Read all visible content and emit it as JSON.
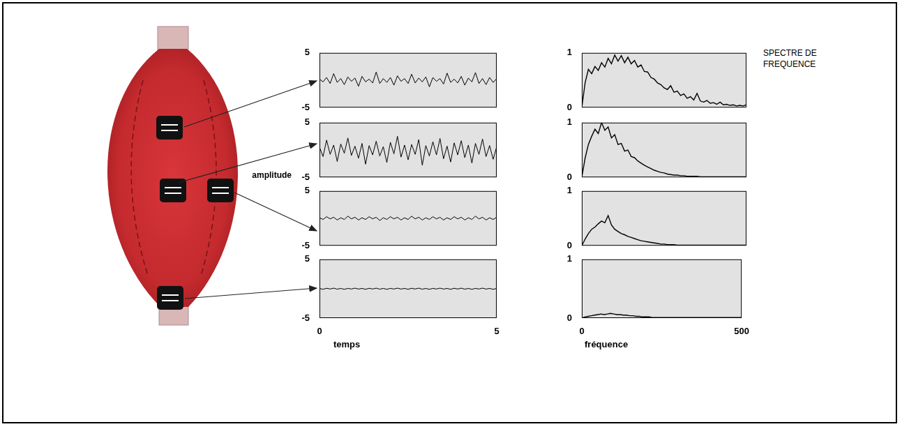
{
  "chart_data": [
    {
      "type": "line",
      "color": "#000000",
      "grid": false,
      "tick_labels": "y",
      "xlim": [
        0,
        5
      ],
      "ylim": [
        -5,
        5
      ],
      "yticks": [
        -5,
        5
      ],
      "x": [
        0,
        0.1,
        0.2,
        0.3,
        0.4,
        0.5,
        0.6,
        0.7,
        0.8,
        0.9,
        1,
        1.1,
        1.2,
        1.3,
        1.4,
        1.5,
        1.6,
        1.7,
        1.8,
        1.9,
        2,
        2.1,
        2.2,
        2.3,
        2.4,
        2.5,
        2.6,
        2.7,
        2.8,
        2.9,
        3,
        3.1,
        3.2,
        3.3,
        3.4,
        3.5,
        3.6,
        3.7,
        3.8,
        3.9,
        4,
        4.1,
        4.2,
        4.3,
        4.4,
        4.5,
        4.6,
        4.7,
        4.8,
        4.9,
        5
      ],
      "values": [
        0.2,
        -0.3,
        0.5,
        -0.6,
        1.2,
        -0.4,
        0.3,
        -0.8,
        0.6,
        -0.2,
        0.4,
        -1.1,
        0.7,
        -0.3,
        0.2,
        -0.5,
        1.5,
        -0.6,
        0.3,
        -0.4,
        0.5,
        -0.9,
        0.8,
        -0.2,
        0.3,
        -0.6,
        1.1,
        -0.5,
        0.4,
        -0.3,
        0.6,
        -1.2,
        0.5,
        -0.2,
        0.3,
        -0.7,
        1.3,
        -0.4,
        0.2,
        -0.5,
        0.7,
        -0.9,
        0.4,
        -0.3,
        1.4,
        -0.6,
        0.3,
        -0.8,
        0.5,
        -0.4,
        0.3
      ]
    },
    {
      "type": "line",
      "color": "#000000",
      "grid": false,
      "tick_labels": "y",
      "y_label": "amplitude",
      "xlim": [
        0,
        5
      ],
      "ylim": [
        -5,
        5
      ],
      "yticks": [
        -5,
        5
      ],
      "x": [
        0,
        0.1,
        0.2,
        0.3,
        0.4,
        0.5,
        0.6,
        0.7,
        0.8,
        0.9,
        1,
        1.1,
        1.2,
        1.3,
        1.4,
        1.5,
        1.6,
        1.7,
        1.8,
        1.9,
        2,
        2.1,
        2.2,
        2.3,
        2.4,
        2.5,
        2.6,
        2.7,
        2.8,
        2.9,
        3,
        3.1,
        3.2,
        3.3,
        3.4,
        3.5,
        3.6,
        3.7,
        3.8,
        3.9,
        4,
        4.1,
        4.2,
        4.3,
        4.4,
        4.5,
        4.6,
        4.7,
        4.8,
        4.9,
        5
      ],
      "values": [
        0.5,
        -1.2,
        1.8,
        -0.8,
        0.9,
        -2.1,
        1.1,
        -0.6,
        2.2,
        -1.0,
        0.7,
        -1.5,
        1.2,
        -2.6,
        0.8,
        -0.9,
        1.6,
        -1.1,
        0.6,
        -2.3,
        1.4,
        -0.7,
        2.5,
        -1.3,
        0.9,
        -1.8,
        1.0,
        -0.8,
        1.9,
        -2.8,
        0.8,
        -1.1,
        1.5,
        -0.9,
        2.1,
        -1.6,
        0.7,
        -2.2,
        1.3,
        -0.9,
        1.7,
        -1.4,
        0.9,
        -2.4,
        1.2,
        -0.8,
        2.0,
        -1.2,
        0.8,
        -1.7,
        0.6
      ]
    },
    {
      "type": "line",
      "color": "#000000",
      "grid": false,
      "tick_labels": "y",
      "xlim": [
        0,
        5
      ],
      "ylim": [
        -5,
        5
      ],
      "yticks": [
        -5,
        5
      ],
      "x": [
        0,
        0.1,
        0.2,
        0.3,
        0.4,
        0.5,
        0.6,
        0.7,
        0.8,
        0.9,
        1,
        1.1,
        1.2,
        1.3,
        1.4,
        1.5,
        1.6,
        1.7,
        1.8,
        1.9,
        2,
        2.1,
        2.2,
        2.3,
        2.4,
        2.5,
        2.6,
        2.7,
        2.8,
        2.9,
        3,
        3.1,
        3.2,
        3.3,
        3.4,
        3.5,
        3.6,
        3.7,
        3.8,
        3.9,
        4,
        4.1,
        4.2,
        4.3,
        4.4,
        4.5,
        4.6,
        4.7,
        4.8,
        4.9,
        5
      ],
      "values": [
        0.1,
        -0.2,
        0.3,
        -0.1,
        0.2,
        -0.3,
        0.1,
        -0.2,
        0.4,
        -0.1,
        0.2,
        -0.3,
        0.1,
        -0.2,
        0.3,
        -0.1,
        0.2,
        -0.4,
        0.1,
        -0.2,
        0.3,
        -0.1,
        0.2,
        -0.3,
        0.1,
        -0.2,
        0.4,
        -0.1,
        0.2,
        -0.3,
        0.1,
        -0.2,
        0.3,
        -0.1,
        0.2,
        -0.3,
        0.1,
        -0.2,
        0.3,
        -0.1,
        0.2,
        -0.3,
        0.1,
        -0.2,
        0.4,
        -0.1,
        0.2,
        -0.3,
        0.1,
        -0.2,
        0.2
      ]
    },
    {
      "type": "line",
      "color": "#000000",
      "grid": false,
      "tick_labels": true,
      "x_label": "temps",
      "xlim": [
        0,
        5
      ],
      "ylim": [
        -5,
        5
      ],
      "xticks": [
        0,
        5
      ],
      "yticks": [
        -5,
        5
      ],
      "x": [
        0,
        0.1,
        0.2,
        0.3,
        0.4,
        0.5,
        0.6,
        0.7,
        0.8,
        0.9,
        1,
        1.1,
        1.2,
        1.3,
        1.4,
        1.5,
        1.6,
        1.7,
        1.8,
        1.9,
        2,
        2.1,
        2.2,
        2.3,
        2.4,
        2.5,
        2.6,
        2.7,
        2.8,
        2.9,
        3,
        3.1,
        3.2,
        3.3,
        3.4,
        3.5,
        3.6,
        3.7,
        3.8,
        3.9,
        4,
        4.1,
        4.2,
        4.3,
        4.4,
        4.5,
        4.6,
        4.7,
        4.8,
        4.9,
        5
      ],
      "values": [
        0.05,
        -0.1,
        0.08,
        -0.05,
        0.1,
        -0.08,
        0.05,
        -0.1,
        0.06,
        -0.05,
        0.1,
        -0.06,
        0.05,
        -0.1,
        0.08,
        -0.05,
        0.1,
        -0.08,
        0.05,
        -0.1,
        0.06,
        -0.05,
        0.1,
        -0.06,
        0.05,
        -0.1,
        0.08,
        -0.05,
        0.1,
        -0.08,
        0.05,
        -0.1,
        0.06,
        -0.05,
        0.1,
        -0.06,
        0.05,
        -0.1,
        0.08,
        -0.05,
        0.1,
        -0.08,
        0.05,
        -0.1,
        0.06,
        -0.05,
        0.1,
        -0.06,
        0.05,
        -0.1,
        0.05
      ]
    },
    {
      "type": "line",
      "color": "#000000",
      "grid": false,
      "tick_labels": "y",
      "xlim": [
        0,
        500
      ],
      "ylim": [
        0,
        1
      ],
      "yticks": [
        0,
        1
      ],
      "x": [
        0,
        10,
        20,
        30,
        40,
        50,
        60,
        70,
        80,
        90,
        100,
        110,
        120,
        130,
        140,
        150,
        160,
        170,
        180,
        190,
        200,
        210,
        220,
        230,
        240,
        250,
        260,
        270,
        280,
        290,
        300,
        310,
        320,
        330,
        340,
        350,
        360,
        370,
        380,
        390,
        400,
        410,
        420,
        430,
        440,
        450,
        460,
        470,
        480,
        490,
        500
      ],
      "values": [
        0,
        0.45,
        0.7,
        0.62,
        0.75,
        0.68,
        0.82,
        0.74,
        0.9,
        0.8,
        0.96,
        0.85,
        0.95,
        0.82,
        0.92,
        0.8,
        0.86,
        0.74,
        0.78,
        0.66,
        0.65,
        0.55,
        0.52,
        0.45,
        0.42,
        0.36,
        0.33,
        0.4,
        0.28,
        0.3,
        0.22,
        0.25,
        0.17,
        0.2,
        0.14,
        0.26,
        0.12,
        0.1,
        0.13,
        0.08,
        0.09,
        0.06,
        0.1,
        0.05,
        0.06,
        0.04,
        0.05,
        0.03,
        0.04,
        0.03,
        0.05
      ]
    },
    {
      "type": "line",
      "color": "#000000",
      "grid": false,
      "tick_labels": "y",
      "xlim": [
        0,
        500
      ],
      "ylim": [
        0,
        1
      ],
      "yticks": [
        0,
        1
      ],
      "x": [
        0,
        10,
        20,
        30,
        40,
        50,
        60,
        70,
        80,
        90,
        100,
        110,
        120,
        130,
        140,
        150,
        160,
        170,
        180,
        190,
        200,
        210,
        220,
        230,
        240,
        250,
        260,
        270,
        280,
        290,
        300,
        310,
        320,
        330,
        340,
        350,
        360,
        370,
        380,
        390,
        400,
        410,
        420,
        430,
        440,
        450,
        460,
        470,
        480,
        490,
        500
      ],
      "values": [
        0,
        0.35,
        0.6,
        0.75,
        0.88,
        0.8,
        1.0,
        0.86,
        0.92,
        0.72,
        0.78,
        0.6,
        0.62,
        0.48,
        0.5,
        0.38,
        0.36,
        0.3,
        0.26,
        0.22,
        0.19,
        0.16,
        0.13,
        0.11,
        0.09,
        0.08,
        0.06,
        0.05,
        0.04,
        0.04,
        0.03,
        0.03,
        0.02,
        0.02,
        0.02,
        0.02,
        0.01,
        0.01,
        0.01,
        0.01,
        0.01,
        0.01,
        0.01,
        0.01,
        0.01,
        0.01,
        0.01,
        0.01,
        0.01,
        0.01,
        0.01
      ]
    },
    {
      "type": "line",
      "color": "#000000",
      "grid": false,
      "tick_labels": "y",
      "xlim": [
        0,
        500
      ],
      "ylim": [
        0,
        1
      ],
      "yticks": [
        0,
        1
      ],
      "x": [
        0,
        10,
        20,
        30,
        40,
        50,
        60,
        70,
        80,
        90,
        100,
        110,
        120,
        130,
        140,
        150,
        160,
        170,
        180,
        190,
        200,
        210,
        220,
        230,
        240,
        250,
        260,
        270,
        280,
        290,
        300,
        310,
        320,
        330,
        340,
        350,
        360,
        370,
        380,
        390,
        400,
        410,
        420,
        430,
        440,
        450,
        460,
        470,
        480,
        490,
        500
      ],
      "values": [
        0,
        0.12,
        0.22,
        0.3,
        0.34,
        0.4,
        0.45,
        0.42,
        0.55,
        0.38,
        0.3,
        0.26,
        0.22,
        0.2,
        0.17,
        0.15,
        0.13,
        0.11,
        0.09,
        0.08,
        0.07,
        0.06,
        0.05,
        0.04,
        0.03,
        0.03,
        0.02,
        0.02,
        0.02,
        0.01,
        0.01,
        0.01,
        0.01,
        0.01,
        0.01,
        0.01,
        0.01,
        0.01,
        0.01,
        0.01,
        0.01,
        0.01,
        0.01,
        0.01,
        0.01,
        0.01,
        0.01,
        0.01,
        0.01,
        0.01,
        0.01
      ]
    },
    {
      "type": "line",
      "color": "#000000",
      "grid": false,
      "tick_labels": true,
      "x_label": "fréquence",
      "xlim": [
        0,
        500
      ],
      "ylim": [
        0,
        1
      ],
      "xticks": [
        0,
        500
      ],
      "yticks": [
        0,
        1
      ],
      "x": [
        0,
        10,
        20,
        30,
        40,
        50,
        60,
        70,
        80,
        90,
        100,
        110,
        120,
        130,
        140,
        150,
        160,
        170,
        180,
        190,
        200,
        210,
        220,
        230,
        240,
        250,
        260,
        270,
        280,
        290,
        300,
        310,
        320,
        330,
        340,
        350,
        360,
        370,
        380,
        390,
        400,
        410,
        420,
        430,
        440,
        450,
        460,
        470,
        480,
        490,
        500
      ],
      "values": [
        0,
        0.02,
        0.03,
        0.04,
        0.05,
        0.06,
        0.07,
        0.06,
        0.07,
        0.08,
        0.07,
        0.06,
        0.06,
        0.05,
        0.05,
        0.04,
        0.04,
        0.03,
        0.03,
        0.02,
        0.02,
        0.02,
        0.01,
        0.01,
        0.01,
        0.01,
        0.01,
        0.01,
        0.01,
        0.01,
        0.01,
        0.01,
        0.01,
        0.01,
        0.01,
        0.01,
        0.01,
        0.01,
        0.01,
        0.01,
        0.01,
        0.01,
        0.01,
        0.01,
        0.01,
        0.01,
        0.01,
        0.01,
        0.01,
        0.01,
        0.01
      ]
    }
  ],
  "figure": {
    "annotation": "SPECTRE DE FREQUENCE"
  }
}
